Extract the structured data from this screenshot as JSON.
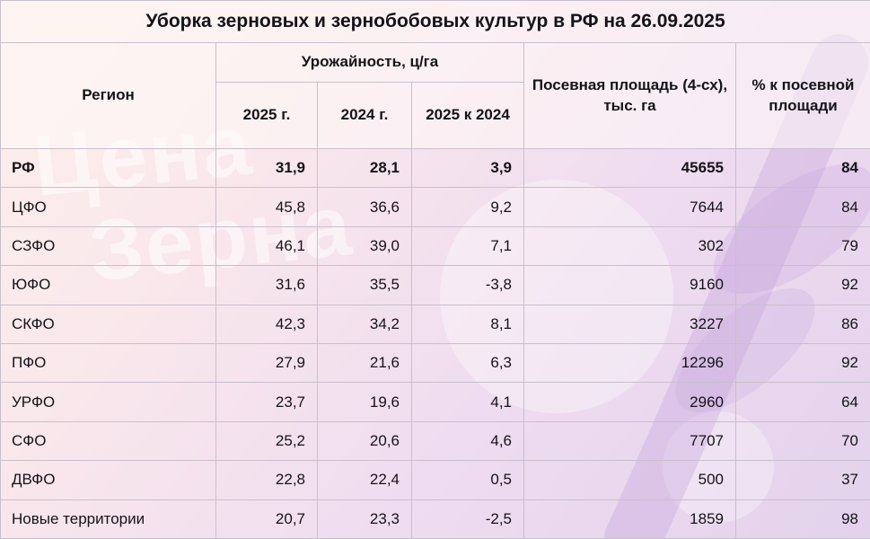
{
  "title": "Уборка зерновых и зернобобовых культур в РФ на 26.09.2025",
  "watermark": {
    "line1": "Цена",
    "line2": "Зерна"
  },
  "table": {
    "region_header": "Регион",
    "yield_group_header": "Урожайность, ц/га",
    "yield_2025_header": "2025 г.",
    "yield_2024_header": "2024 г.",
    "yield_diff_header": "2025 к 2024",
    "area_header": "Посевная площадь (4-сх), тыс. га",
    "pct_header": "% к посевной площади"
  },
  "chart_data": {
    "type": "table",
    "title": "Уборка зерновых и зернобобовых культур в РФ на 26.09.2025",
    "columns": [
      "Регион",
      "Урожайность 2025 г., ц/га",
      "Урожайность 2024 г., ц/га",
      "Урожайность 2025 к 2024, ц/га",
      "Посевная площадь (4-сх), тыс. га",
      "% к посевной площади"
    ],
    "rows": [
      [
        "РФ",
        "31,9",
        "28,1",
        "3,9",
        "45655",
        "84"
      ],
      [
        "ЦФО",
        "45,8",
        "36,6",
        "9,2",
        "7644",
        "84"
      ],
      [
        "СЗФО",
        "46,1",
        "39,0",
        "7,1",
        "302",
        "79"
      ],
      [
        "ЮФО",
        "31,6",
        "35,5",
        "-3,8",
        "9160",
        "92"
      ],
      [
        "СКФО",
        "42,3",
        "34,2",
        "8,1",
        "3227",
        "86"
      ],
      [
        "ПФО",
        "27,9",
        "21,6",
        "6,3",
        "12296",
        "92"
      ],
      [
        "УРФО",
        "23,7",
        "19,6",
        "4,1",
        "2960",
        "64"
      ],
      [
        "СФО",
        "25,2",
        "20,6",
        "4,6",
        "7707",
        "70"
      ],
      [
        "ДВФО",
        "22,8",
        "22,4",
        "0,5",
        "500",
        "37"
      ],
      [
        "Новые территории",
        "20,7",
        "23,3",
        "-2,5",
        "1859",
        "98"
      ]
    ]
  }
}
